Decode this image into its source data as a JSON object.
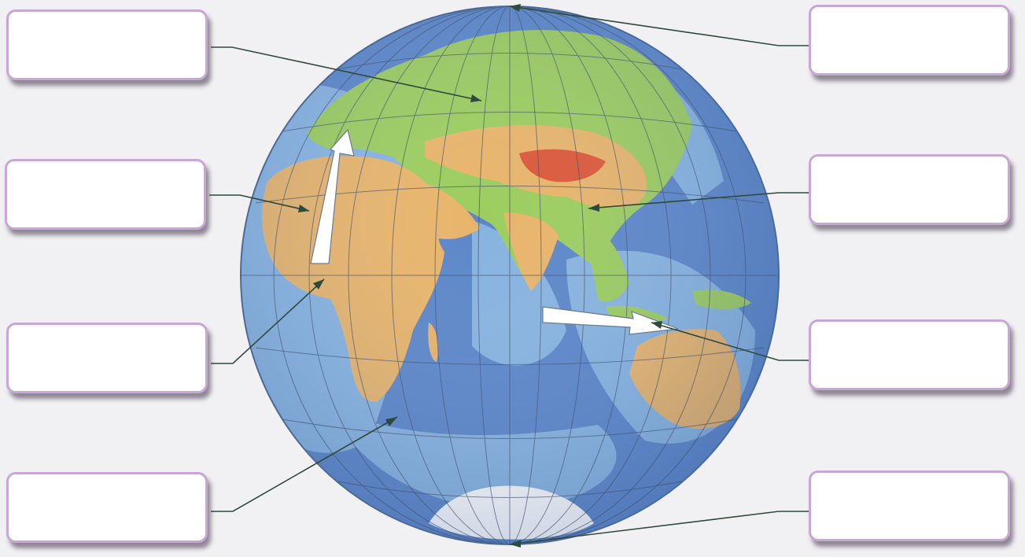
{
  "exercise": {
    "answer_boxes": [
      {
        "id": "box-left-1",
        "text": ""
      },
      {
        "id": "box-left-2",
        "text": ""
      },
      {
        "id": "box-left-3",
        "text": ""
      },
      {
        "id": "box-left-4",
        "text": ""
      },
      {
        "id": "box-right-1",
        "text": ""
      },
      {
        "id": "box-right-2",
        "text": ""
      },
      {
        "id": "box-right-3",
        "text": ""
      },
      {
        "id": "box-right-4",
        "text": ""
      }
    ]
  },
  "colors": {
    "page_background": "#f1f0f2",
    "ocean_deep": "#5b86c9",
    "ocean_shallow": "#8cb8e3",
    "lowland": "#9ccd5e",
    "upland": "#e8b46a",
    "mountains": "#d9472f",
    "ice": "#ffffff",
    "graticule": "#3b4a66",
    "leader_lines": "#2e4a3c",
    "box_border": "#c9a6d6",
    "arrow_fill": "#ffffff"
  },
  "icons": [
    "globe-eastern-hemisphere",
    "white-current-arrow",
    "leader-line"
  ]
}
